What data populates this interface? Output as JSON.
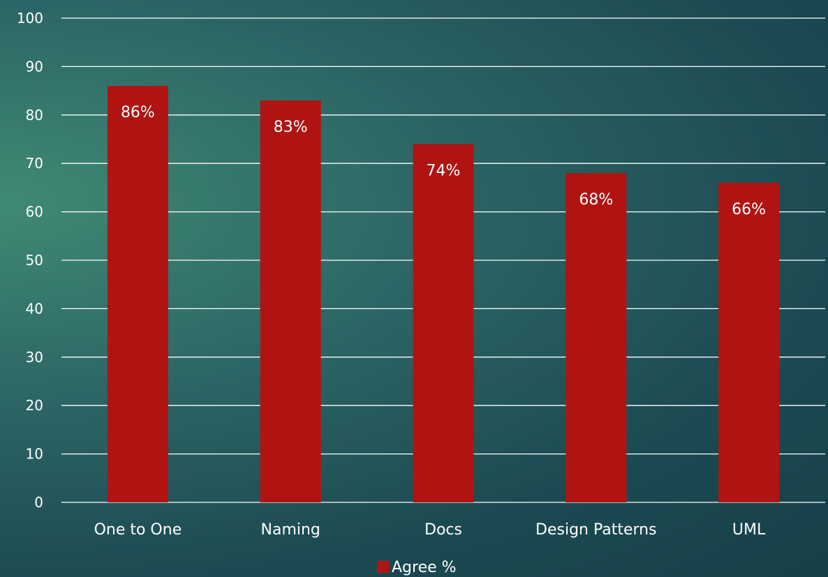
{
  "chart_data": {
    "type": "bar",
    "categories": [
      "One to One",
      "Naming",
      "Docs",
      "Design Patterns",
      "UML"
    ],
    "series": [
      {
        "name": "Agree %",
        "values": [
          86,
          83,
          74,
          68,
          66
        ],
        "labels": [
          "86%",
          "83%",
          "74%",
          "68%",
          "66%"
        ],
        "color": "#b01412"
      }
    ],
    "ylim": [
      0,
      100
    ],
    "yticks": [
      0,
      10,
      20,
      30,
      40,
      50,
      60,
      70,
      80,
      90,
      100
    ],
    "grid": true,
    "legend": "bottom",
    "gridline_color": "#ffffff",
    "text_color": "#ffffff"
  }
}
